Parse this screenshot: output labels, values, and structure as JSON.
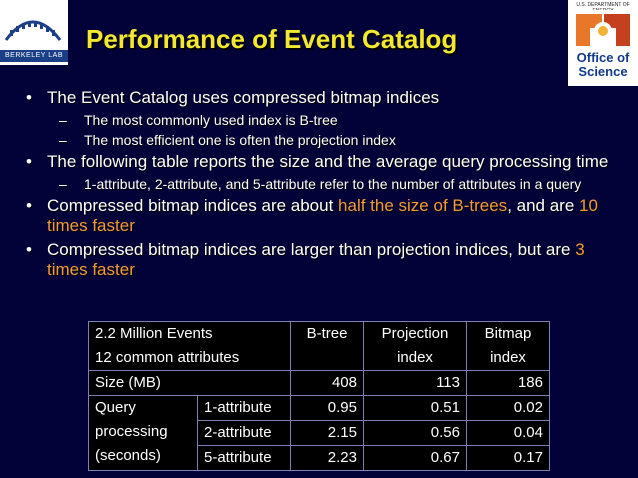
{
  "logos": {
    "left_text": "BERKELEY LAB",
    "right_doe_text": "U.S. DEPARTMENT OF ENERGY",
    "right_office_line1": "Office of",
    "right_office_line2": "Science"
  },
  "title": "Performance of Event Catalog",
  "bullets": [
    {
      "text": "The Event Catalog uses compressed bitmap indices",
      "sub": [
        "The most commonly used index is B-tree",
        "The most efficient one is often the projection index"
      ]
    },
    {
      "text": "The following table reports the size and the average query processing time",
      "sub": [
        "1-attribute, 2-attribute, and 5-attribute refer to the number of attributes in a query"
      ]
    },
    {
      "text_parts": [
        "Compressed bitmap indices are about ",
        "half the size of B-trees",
        ", and are ",
        "10 times faster"
      ]
    },
    {
      "text_parts": [
        "Compressed bitmap indices are larger than projection indices, but are ",
        "3 times faster"
      ]
    }
  ],
  "table": {
    "header_line1": "2.2 Million Events",
    "header_line2": "12 common attributes",
    "col_btree": "B-tree",
    "col_projection_1": "Projection",
    "col_projection_2": "index",
    "col_bitmap_1": "Bitmap",
    "col_bitmap_2": "index",
    "size_label": "Size (MB)",
    "size_values": [
      "408",
      "113",
      "186"
    ],
    "query_label_1": "Query",
    "query_label_2": "processing",
    "query_label_3": "(seconds)",
    "rows": [
      {
        "label": "1-attribute",
        "values": [
          "0.95",
          "0.51",
          "0.02"
        ]
      },
      {
        "label": "2-attribute",
        "values": [
          "2.15",
          "0.56",
          "0.04"
        ]
      },
      {
        "label": "5-attribute",
        "values": [
          "2.23",
          "0.67",
          "0.17"
        ]
      }
    ]
  },
  "colors": {
    "background": "#020238",
    "title": "#f2e830",
    "highlight": "#f39b3a"
  }
}
